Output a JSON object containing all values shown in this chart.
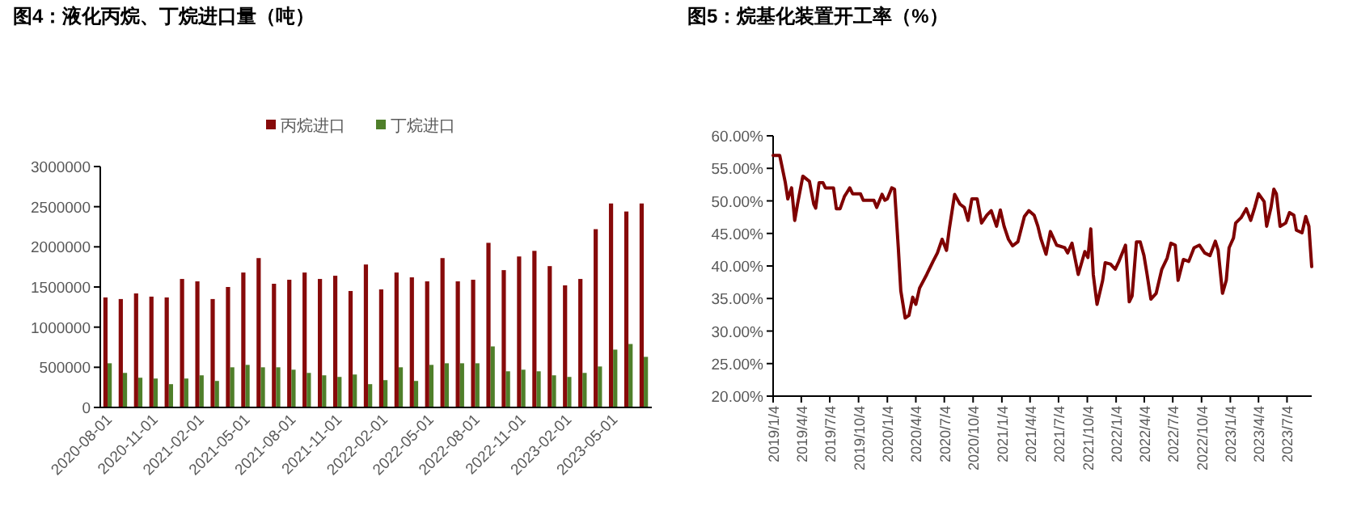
{
  "chart_data": [
    {
      "type": "bar",
      "title": "图4：液化丙烷、丁烷进口量（吨）",
      "categories": [
        "2020-08-01",
        null,
        null,
        "2020-11-01",
        null,
        null,
        "2021-02-01",
        null,
        null,
        "2021-05-01",
        null,
        null,
        "2021-08-01",
        null,
        null,
        "2021-11-01",
        null,
        null,
        "2022-02-01",
        null,
        null,
        "2022-05-01",
        null,
        null,
        "2022-08-01",
        null,
        null,
        "2022-11-01",
        null,
        null,
        "2023-02-01",
        null,
        null,
        "2023-05-01",
        null,
        null
      ],
      "series": [
        {
          "name": "丙烷进口",
          "color": "#870a0a",
          "values": [
            1370000,
            1350000,
            1420000,
            1380000,
            1370000,
            1600000,
            1570000,
            1350000,
            1500000,
            1680000,
            1860000,
            1540000,
            1590000,
            1680000,
            1600000,
            1640000,
            1450000,
            1780000,
            1470000,
            1680000,
            1620000,
            1570000,
            1860000,
            1570000,
            1590000,
            2050000,
            1710000,
            1880000,
            1950000,
            1760000,
            1520000,
            1600000,
            2220000,
            2540000,
            2440000,
            2540000
          ]
        },
        {
          "name": "丁烷进口",
          "color": "#4f7f2a",
          "values": [
            550000,
            430000,
            370000,
            360000,
            290000,
            360000,
            400000,
            330000,
            500000,
            530000,
            500000,
            500000,
            470000,
            430000,
            400000,
            380000,
            410000,
            290000,
            340000,
            500000,
            330000,
            530000,
            550000,
            550000,
            550000,
            760000,
            450000,
            470000,
            450000,
            400000,
            380000,
            430000,
            510000,
            720000,
            790000,
            630000
          ]
        }
      ],
      "ylim": [
        0,
        3000000
      ],
      "yticks": [
        0,
        500000,
        1000000,
        1500000,
        2000000,
        2500000,
        3000000
      ],
      "legend": "top",
      "grid": false
    },
    {
      "type": "line",
      "title": "图5：烷基化装置开工率（%）",
      "x": [
        "2019-01-04",
        "2019-01-25",
        "2019-02-12",
        "2019-02-20",
        "2019-03-04",
        "2019-03-14",
        "2019-03-23",
        "2019-04-09",
        "2019-04-30",
        "2019-05-14",
        "2019-05-20",
        "2019-05-31",
        "2019-06-12",
        "2019-06-20",
        "2019-07-16",
        "2019-07-25",
        "2019-08-06",
        "2019-08-20",
        "2019-08-28",
        "2019-09-06",
        "2019-09-15",
        "2019-10-10",
        "2019-10-19",
        "2019-11-22",
        "2019-12-01",
        "2019-12-18",
        "2019-12-27",
        "2020-01-04",
        "2020-01-18",
        "2020-01-27",
        "2020-02-08",
        "2020-02-16",
        "2020-03-01",
        "2020-03-13",
        "2020-03-25",
        "2020-04-04",
        "2020-04-16",
        "2020-05-09",
        "2020-05-29",
        "2020-06-12",
        "2020-06-27",
        "2020-07-11",
        "2020-07-20",
        "2020-08-06",
        "2020-08-23",
        "2020-09-06",
        "2020-09-18",
        "2020-09-30",
        "2020-10-17",
        "2020-10-31",
        "2020-11-17",
        "2020-12-01",
        "2020-12-18",
        "2020-12-30",
        "2021-01-11",
        "2021-01-25",
        "2021-02-07",
        "2021-02-24",
        "2021-03-17",
        "2021-03-31",
        "2021-04-17",
        "2021-04-29",
        "2021-05-08",
        "2021-05-25",
        "2021-06-08",
        "2021-06-28",
        "2021-07-24",
        "2021-08-02",
        "2021-08-16",
        "2021-09-05",
        "2021-09-26",
        "2021-10-06",
        "2021-10-15",
        "2021-10-23",
        "2021-11-04",
        "2021-11-22",
        "2021-11-30",
        "2021-12-17",
        "2022-01-01",
        "2022-01-13",
        "2022-02-03",
        "2022-02-15",
        "2022-02-24",
        "2022-03-10",
        "2022-03-22",
        "2022-04-03",
        "2022-04-13",
        "2022-04-25",
        "2022-05-12",
        "2022-05-30",
        "2022-06-16",
        "2022-06-28",
        "2022-07-12",
        "2022-07-21",
        "2022-08-07",
        "2022-08-24",
        "2022-09-10",
        "2022-09-27",
        "2022-10-14",
        "2022-10-31",
        "2022-11-17",
        "2022-11-26",
        "2022-12-10",
        "2022-12-22",
        "2022-12-31",
        "2023-01-14",
        "2023-01-21",
        "2023-02-07",
        "2023-02-24",
        "2023-03-10",
        "2023-03-23",
        "2023-04-04",
        "2023-04-22",
        "2023-04-30",
        "2023-05-14",
        "2023-05-23",
        "2023-05-31",
        "2023-06-12",
        "2023-06-30",
        "2023-07-12",
        "2023-07-26",
        "2023-08-03",
        "2023-08-21",
        "2023-09-02",
        "2023-09-12",
        "2023-09-21"
      ],
      "series": [
        {
          "color": "#7f0000",
          "values": [
            57,
            57,
            52.8,
            50.3,
            52,
            47,
            49.5,
            53.8,
            53,
            49.5,
            48.9,
            52.8,
            52.8,
            52,
            52,
            48.8,
            48.8,
            50.7,
            51.3,
            52,
            51.1,
            51.1,
            50.1,
            50.1,
            49,
            51,
            50.1,
            50.3,
            52,
            51.8,
            42.8,
            36.2,
            32,
            32.4,
            35.2,
            34.1,
            36.6,
            38.7,
            40.7,
            42,
            44.1,
            42.4,
            45.7,
            51,
            49.5,
            49,
            47,
            50.3,
            50.3,
            46.6,
            47.8,
            48.5,
            46.1,
            48.6,
            46.1,
            44.1,
            43.1,
            43.7,
            47.6,
            48.5,
            47.8,
            46.1,
            44.3,
            41.8,
            45.3,
            43.2,
            42.8,
            42,
            43.5,
            38.7,
            42.2,
            41.3,
            45.7,
            38.7,
            34.1,
            37.8,
            40.5,
            40.3,
            39.5,
            40.7,
            43.2,
            34.5,
            35.4,
            43.7,
            43.7,
            41.6,
            38.7,
            34.9,
            35.8,
            39.5,
            41.2,
            43.5,
            43.2,
            37.8,
            41,
            40.7,
            42.8,
            43.2,
            42,
            41.6,
            43.8,
            42.4,
            35.8,
            37.8,
            42.8,
            44.3,
            46.6,
            47.4,
            48.8,
            47,
            49,
            51.1,
            49.9,
            46.1,
            49,
            51.8,
            51.1,
            46.1,
            46.6,
            48.2,
            47.8,
            45.5,
            45.1,
            47.6,
            46.1,
            39.9
          ]
        }
      ],
      "xlim": [
        "2019-01-04",
        "2023-09-21"
      ],
      "xticks": [
        {
          "value": "2019-01-04",
          "label": "2019/1/4"
        },
        {
          "value": "2019-04-04",
          "label": "2019/4/4"
        },
        {
          "value": "2019-07-04",
          "label": "2019/7/4"
        },
        {
          "value": "2019-10-04",
          "label": "2019/10/4"
        },
        {
          "value": "2020-01-04",
          "label": "2020/1/4"
        },
        {
          "value": "2020-04-04",
          "label": "2020/4/4"
        },
        {
          "value": "2020-07-04",
          "label": "2020/7/4"
        },
        {
          "value": "2020-10-04",
          "label": "2020/10/4"
        },
        {
          "value": "2021-01-04",
          "label": "2021/1/4"
        },
        {
          "value": "2021-04-04",
          "label": "2021/4/4"
        },
        {
          "value": "2021-07-04",
          "label": "2021/7/4"
        },
        {
          "value": "2021-10-04",
          "label": "2021/10/4"
        },
        {
          "value": "2022-01-04",
          "label": "2022/1/4"
        },
        {
          "value": "2022-04-04",
          "label": "2022/4/4"
        },
        {
          "value": "2022-07-04",
          "label": "2022/7/4"
        },
        {
          "value": "2022-10-04",
          "label": "2022/10/4"
        },
        {
          "value": "2023-01-04",
          "label": "2023/1/4"
        },
        {
          "value": "2023-04-04",
          "label": "2023/4/4"
        },
        {
          "value": "2023-07-04",
          "label": "2023/7/4"
        }
      ],
      "ylim": [
        20,
        60
      ],
      "yticks": [
        {
          "value": 20,
          "label": "20.00%"
        },
        {
          "value": 25,
          "label": "25.00%"
        },
        {
          "value": 30,
          "label": "30.00%"
        },
        {
          "value": 35,
          "label": "35.00%"
        },
        {
          "value": 40,
          "label": "40.00%"
        },
        {
          "value": 45,
          "label": "45.00%"
        },
        {
          "value": 50,
          "label": "50.00%"
        },
        {
          "value": 55,
          "label": "55.00%"
        },
        {
          "value": 60,
          "label": "60.00%"
        }
      ],
      "grid": false,
      "marker": "none",
      "line_style": "solid"
    }
  ]
}
